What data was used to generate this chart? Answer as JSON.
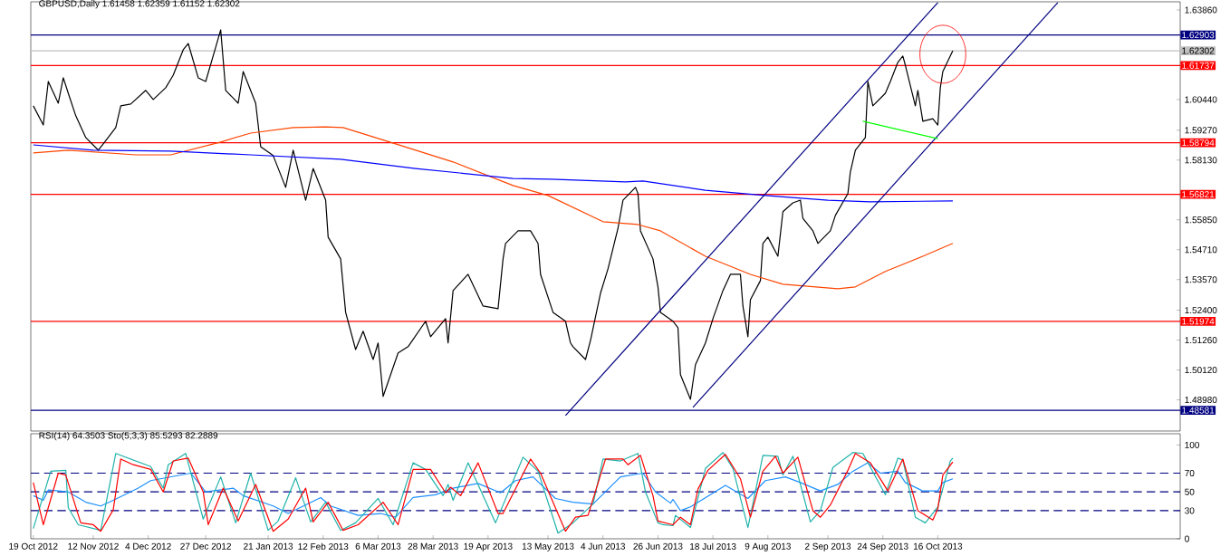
{
  "chart_data": [
    {
      "type": "line",
      "title": "GBPUSD,Daily 1.61458 1.62359 1.61152 1.62302",
      "xlim": [
        "2012-10-18",
        "2014-01-21"
      ],
      "ylim": [
        1.4779,
        1.6417
      ],
      "tick_labels": "y",
      "yticks": [
        {
          "value": 1.6386,
          "label": "1.63860"
        },
        {
          "value": 1.6044,
          "label": "1.60440"
        },
        {
          "value": 1.5927,
          "label": "1.59270"
        },
        {
          "value": 1.5813,
          "label": "1.58130"
        },
        {
          "value": 1.5585,
          "label": "1.55850"
        },
        {
          "value": 1.5471,
          "label": "1.54710"
        },
        {
          "value": 1.5357,
          "label": "1.53570"
        },
        {
          "value": 1.524,
          "label": "1.52400"
        },
        {
          "value": 1.5126,
          "label": "1.51260"
        },
        {
          "value": 1.5012,
          "label": "1.50120"
        },
        {
          "value": 1.4898,
          "label": "1.48980"
        }
      ],
      "series": [
        {
          "color": "#000000",
          "x": [
            "2012-10-19",
            "2012-10-23",
            "2012-10-25",
            "2012-10-29",
            "2012-10-31",
            "2012-11-02",
            "2012-11-05",
            "2012-11-09",
            "2012-11-14",
            "2012-11-16",
            "2012-11-21",
            "2012-11-23",
            "2012-11-27",
            "2012-12-03",
            "2012-12-06",
            "2012-12-11",
            "2012-12-14",
            "2012-12-18",
            "2012-12-20",
            "2012-12-24",
            "2012-12-27",
            "2012-12-31",
            "2013-01-02",
            "2013-01-04",
            "2013-01-09",
            "2013-01-11",
            "2013-01-16",
            "2013-01-18",
            "2013-01-23",
            "2013-01-28",
            "2013-01-31",
            "2013-02-05",
            "2013-02-08",
            "2013-02-13",
            "2013-02-14",
            "2013-02-19",
            "2013-02-21",
            "2013-02-25",
            "2013-02-28",
            "2013-03-04",
            "2013-03-06",
            "2013-03-08",
            "2013-03-14",
            "2013-03-18",
            "2013-03-25",
            "2013-03-27",
            "2013-04-02",
            "2013-04-03",
            "2013-04-05",
            "2013-04-11",
            "2013-04-17",
            "2013-04-23",
            "2013-04-25",
            "2013-04-26",
            "2013-05-01",
            "2013-05-06",
            "2013-05-09",
            "2013-05-10",
            "2013-05-15",
            "2013-05-20",
            "2013-05-22",
            "2013-05-23",
            "2013-05-28",
            "2013-05-30",
            "2013-06-03",
            "2013-06-06",
            "2013-06-10",
            "2013-06-12",
            "2013-06-17",
            "2013-06-18",
            "2013-06-19",
            "2013-06-24",
            "2013-06-26",
            "2013-06-27",
            "2013-07-02",
            "2013-07-04",
            "2013-07-05",
            "2013-07-09",
            "2013-07-11",
            "2013-07-15",
            "2013-07-18",
            "2013-07-22",
            "2013-07-25",
            "2013-07-29",
            "2013-07-30",
            "2013-08-01",
            "2013-08-02",
            "2013-08-06",
            "2013-08-07",
            "2013-08-09",
            "2013-08-13",
            "2013-08-15",
            "2013-08-19",
            "2013-08-22",
            "2013-08-23",
            "2013-08-27",
            "2013-08-29",
            "2013-09-03",
            "2013-09-05",
            "2013-09-10",
            "2013-09-11",
            "2013-09-13",
            "2013-09-17",
            "2013-09-18",
            "2013-09-20",
            "2013-09-25",
            "2013-09-27",
            "2013-09-30",
            "2013-10-02",
            "2013-10-03",
            "2013-10-07",
            "2013-10-08",
            "2013-10-10",
            "2013-10-14",
            "2013-10-16",
            "2013-10-17",
            "2013-10-18",
            "2013-10-22"
          ],
          "values": [
            1.602,
            1.5947,
            1.6113,
            1.603,
            1.6127,
            1.6068,
            1.5982,
            1.5899,
            1.5851,
            1.5875,
            1.5937,
            1.602,
            1.6027,
            1.6079,
            1.6044,
            1.6089,
            1.6137,
            1.6234,
            1.6258,
            1.6127,
            1.6113,
            1.6244,
            1.631,
            1.6079,
            1.603,
            1.6151,
            1.603,
            1.5864,
            1.583,
            1.5709,
            1.5851,
            1.566,
            1.5781,
            1.566,
            1.5519,
            1.5436,
            1.5232,
            1.509,
            1.516,
            1.5052,
            1.5115,
            1.4911,
            1.5077,
            1.5101,
            1.5198,
            1.5139,
            1.5208,
            1.5115,
            1.5315,
            1.5377,
            1.5256,
            1.5246,
            1.5436,
            1.5495,
            1.5543,
            1.5543,
            1.5495,
            1.5377,
            1.5232,
            1.5198,
            1.5115,
            1.5101,
            1.5052,
            1.5125,
            1.5305,
            1.5398,
            1.5553,
            1.566,
            1.5709,
            1.5685,
            1.5543,
            1.5436,
            1.5329,
            1.5232,
            1.5198,
            1.5173,
            1.4994,
            1.49,
            1.5032,
            1.5115,
            1.5208,
            1.5315,
            1.5377,
            1.5377,
            1.5256,
            1.5139,
            1.528,
            1.5353,
            1.5495,
            1.5519,
            1.5446,
            1.5616,
            1.565,
            1.566,
            1.5591,
            1.5543,
            1.5495,
            1.5543,
            1.5602,
            1.5685,
            1.5768,
            1.5851,
            1.5899,
            1.6113,
            1.602,
            1.6068,
            1.6113,
            1.6186,
            1.621,
            1.6175,
            1.602,
            1.6079,
            1.5961,
            1.5971,
            1.5947,
            1.6089,
            1.6151,
            1.623
          ]
        },
        {
          "color": "#ff4500",
          "x": [
            "2012-10-19",
            "2012-11-02",
            "2012-11-29",
            "2012-12-13",
            "2013-01-02",
            "2013-01-14",
            "2013-01-31",
            "2013-02-13",
            "2013-02-20",
            "2013-03-13",
            "2013-04-05",
            "2013-04-29",
            "2013-05-13",
            "2013-06-04",
            "2013-06-18",
            "2013-06-27",
            "2013-07-15",
            "2013-08-02",
            "2013-08-15",
            "2013-09-06",
            "2013-09-13",
            "2013-09-25",
            "2013-10-10",
            "2013-10-22"
          ],
          "values": [
            1.584,
            1.5851,
            1.5833,
            1.5833,
            1.5882,
            1.5916,
            1.5937,
            1.594,
            1.5937,
            1.5875,
            1.5806,
            1.5716,
            1.5678,
            1.5578,
            1.5567,
            1.5543,
            1.5446,
            1.5377,
            1.5339,
            1.5322,
            1.5329,
            1.5388,
            1.5446,
            1.5495
          ]
        },
        {
          "color": "#0000ff",
          "x": [
            "2012-10-19",
            "2012-11-12",
            "2012-12-13",
            "2013-01-14",
            "2013-02-19",
            "2013-03-21",
            "2013-04-29",
            "2013-05-14",
            "2013-06-13",
            "2013-06-20",
            "2013-07-15",
            "2013-08-08",
            "2013-09-02",
            "2013-09-19",
            "2013-10-22"
          ],
          "values": [
            1.5871,
            1.5851,
            1.5847,
            1.5833,
            1.5816,
            1.5781,
            1.5743,
            1.574,
            1.573,
            1.5733,
            1.5698,
            1.5678,
            1.566,
            1.5654,
            1.5657
          ]
        },
        {
          "color": "#000080",
          "x": [
            "2013-05-20",
            "2013-10-16"
          ],
          "values": [
            1.4838,
            1.6414
          ]
        },
        {
          "color": "#000080",
          "x": [
            "2013-07-10",
            "2013-12-03"
          ],
          "values": [
            1.4869,
            1.6414
          ]
        },
        {
          "color": "#00ff00",
          "x": [
            "2013-09-16",
            "2013-10-16"
          ],
          "values": [
            1.5961,
            1.5895
          ]
        }
      ],
      "ref_lines": [
        {
          "axis": "y",
          "value": 1.62903,
          "label": "1.62903",
          "color": "#000080"
        },
        {
          "axis": "y",
          "value": 1.62302,
          "label": "1.62302",
          "color": "#c0c0c0"
        },
        {
          "axis": "y",
          "value": 1.61737,
          "label": "1.61737",
          "color": "#ff0000"
        },
        {
          "axis": "y",
          "value": 1.58794,
          "label": "1.58794",
          "color": "#ff0000"
        },
        {
          "axis": "y",
          "value": 1.56821,
          "label": "1.56821",
          "color": "#ff0000"
        },
        {
          "axis": "y",
          "value": 1.51974,
          "label": "1.51974",
          "color": "#ff0000"
        },
        {
          "axis": "y",
          "value": 1.48581,
          "label": "1.48581",
          "color": "#000080"
        }
      ]
    },
    {
      "type": "line",
      "title": "RSI(14) 64.3503 Sto(5,3,3) 85.5293 82.2889",
      "xlim": [
        "2012-10-18",
        "2014-01-21"
      ],
      "ylim": [
        0,
        112
      ],
      "yticks": [
        0,
        30,
        50,
        70,
        100
      ],
      "xticks": [
        {
          "value": "2012-10-19",
          "label": "19 Oct 2012"
        },
        {
          "value": "2012-11-12",
          "label": "12 Nov 2012"
        },
        {
          "value": "2012-12-04",
          "label": "4 Dec 2012"
        },
        {
          "value": "2012-12-27",
          "label": "27 Dec 2012"
        },
        {
          "value": "2013-01-21",
          "label": "21 Jan 2013"
        },
        {
          "value": "2013-02-12",
          "label": "12 Feb 2013"
        },
        {
          "value": "2013-03-06",
          "label": "6 Mar 2013"
        },
        {
          "value": "2013-03-28",
          "label": "28 Mar 2013"
        },
        {
          "value": "2013-04-19",
          "label": "19 Apr 2013"
        },
        {
          "value": "2013-05-13",
          "label": "13 May 2013"
        },
        {
          "value": "2013-06-04",
          "label": "4 Jun 2013"
        },
        {
          "value": "2013-06-26",
          "label": "26 Jun 2013"
        },
        {
          "value": "2013-07-18",
          "label": "18 Jul 2013"
        },
        {
          "value": "2013-08-09",
          "label": "9 Aug 2013"
        },
        {
          "value": "2013-09-02",
          "label": "2 Sep 2013"
        },
        {
          "value": "2013-09-24",
          "label": "24 Sep 2013"
        },
        {
          "value": "2013-10-16",
          "label": "16 Oct 2013"
        }
      ],
      "series": [
        {
          "color": "#1e90ff",
          "x": [
            "2012-10-19",
            "2012-10-23",
            "2012-10-25",
            "2012-11-02",
            "2012-11-09",
            "2012-11-15",
            "2012-11-20",
            "2012-11-30",
            "2012-12-05",
            "2012-12-21",
            "2012-12-27",
            "2013-01-07",
            "2013-01-11",
            "2013-01-23",
            "2013-01-29",
            "2013-02-11",
            "2013-02-15",
            "2013-02-26",
            "2013-03-07",
            "2013-03-13",
            "2013-03-20",
            "2013-03-29",
            "2013-04-05",
            "2013-04-15",
            "2013-04-24",
            "2013-04-30",
            "2013-05-07",
            "2013-05-16",
            "2013-05-23",
            "2013-05-31",
            "2013-06-11",
            "2013-06-20",
            "2013-06-25",
            "2013-07-01",
            "2013-07-02",
            "2013-07-05",
            "2013-07-09",
            "2013-07-17",
            "2013-07-23",
            "2013-08-01",
            "2013-08-08",
            "2013-08-16",
            "2013-08-22",
            "2013-08-30",
            "2013-09-06",
            "2013-09-12",
            "2013-09-18",
            "2013-09-23",
            "2013-09-30",
            "2013-10-03",
            "2013-10-10",
            "2013-10-16",
            "2013-10-18",
            "2013-10-22"
          ],
          "values": [
            46,
            41,
            52,
            50,
            39,
            35,
            41,
            54,
            62,
            70,
            50,
            54,
            46,
            35,
            27,
            44,
            35,
            25,
            27,
            23,
            44,
            47,
            54,
            59,
            49,
            62,
            66,
            43,
            39,
            37,
            66,
            70,
            50,
            38,
            42,
            30,
            34,
            47,
            57,
            43,
            62,
            66,
            60,
            51,
            58,
            72,
            81,
            70,
            72,
            60,
            51,
            51,
            60,
            64
          ]
        },
        {
          "color": "#20b2aa",
          "x": [
            "2012-10-19",
            "2012-10-26",
            "2012-11-01",
            "2012-11-02",
            "2012-11-06",
            "2012-11-15",
            "2012-11-21",
            "2012-12-05",
            "2012-12-10",
            "2012-12-12",
            "2012-12-19",
            "2012-12-26",
            "2013-01-02",
            "2013-01-08",
            "2013-01-14",
            "2013-01-21",
            "2013-01-25",
            "2013-02-01",
            "2013-02-07",
            "2013-02-13",
            "2013-02-19",
            "2013-02-25",
            "2013-03-06",
            "2013-03-12",
            "2013-03-20",
            "2013-03-25",
            "2013-04-01",
            "2013-04-03",
            "2013-04-05",
            "2013-04-11",
            "2013-04-22",
            "2013-05-03",
            "2013-05-09",
            "2013-05-17",
            "2013-05-23",
            "2013-05-31",
            "2013-06-04",
            "2013-06-11",
            "2013-06-18",
            "2013-06-21",
            "2013-06-26",
            "2013-06-28",
            "2013-07-02",
            "2013-07-03",
            "2013-07-09",
            "2013-07-15",
            "2013-07-22",
            "2013-07-26",
            "2013-08-01",
            "2013-08-07",
            "2013-08-13",
            "2013-08-15",
            "2013-08-19",
            "2013-08-26",
            "2013-08-30",
            "2013-09-04",
            "2013-09-12",
            "2013-09-16",
            "2013-09-25",
            "2013-09-30",
            "2013-10-02",
            "2013-10-07",
            "2013-10-11",
            "2013-10-16",
            "2013-10-21",
            "2013-10-22"
          ],
          "values": [
            11,
            72,
            73,
            33,
            15,
            9,
            91,
            77,
            54,
            79,
            91,
            21,
            66,
            17,
            70,
            9,
            19,
            65,
            18,
            39,
            9,
            17,
            43,
            15,
            81,
            74,
            46,
            58,
            41,
            81,
            17,
            87,
            72,
            6,
            17,
            37,
            85,
            83,
            91,
            50,
            17,
            15,
            14,
            25,
            12,
            75,
            92,
            75,
            12,
            89,
            88,
            68,
            88,
            18,
            30,
            76,
            92,
            91,
            47,
            86,
            84,
            23,
            17,
            34,
            83,
            86
          ]
        },
        {
          "color": "#ff0000",
          "x": [
            "2012-10-19",
            "2012-10-23",
            "2012-10-29",
            "2012-11-01",
            "2012-11-07",
            "2012-11-12",
            "2012-11-15",
            "2012-11-20",
            "2012-11-23",
            "2012-11-28",
            "2012-12-05",
            "2012-12-10",
            "2012-12-14",
            "2012-12-20",
            "2012-12-26",
            "2012-12-28",
            "2013-01-03",
            "2013-01-09",
            "2013-01-16",
            "2013-01-23",
            "2013-01-29",
            "2013-02-05",
            "2013-02-08",
            "2013-02-14",
            "2013-02-20",
            "2013-02-26",
            "2013-03-08",
            "2013-03-14",
            "2013-03-20",
            "2013-03-27",
            "2013-04-02",
            "2013-04-04",
            "2013-04-08",
            "2013-04-15",
            "2013-04-23",
            "2013-04-25",
            "2013-05-06",
            "2013-05-10",
            "2013-05-20",
            "2013-05-24",
            "2013-05-29",
            "2013-06-05",
            "2013-06-12",
            "2013-06-14",
            "2013-06-19",
            "2013-06-24",
            "2013-06-26",
            "2013-07-02",
            "2013-07-05",
            "2013-07-09",
            "2013-07-12",
            "2013-07-16",
            "2013-07-23",
            "2013-07-29",
            "2013-08-02",
            "2013-08-07",
            "2013-08-12",
            "2013-08-15",
            "2013-08-21",
            "2013-08-27",
            "2013-08-30",
            "2013-09-03",
            "2013-09-10",
            "2013-09-13",
            "2013-09-19",
            "2013-09-26",
            "2013-10-02",
            "2013-10-08",
            "2013-10-14",
            "2013-10-16",
            "2013-10-18",
            "2013-10-22"
          ],
          "values": [
            60,
            15,
            70,
            68,
            17,
            15,
            8,
            31,
            85,
            79,
            74,
            50,
            83,
            86,
            50,
            15,
            54,
            19,
            58,
            8,
            21,
            54,
            18,
            39,
            9,
            15,
            39,
            15,
            74,
            74,
            49,
            55,
            46,
            81,
            27,
            27,
            85,
            70,
            8,
            23,
            25,
            85,
            85,
            79,
            89,
            46,
            19,
            15,
            23,
            15,
            53,
            73,
            90,
            64,
            23,
            72,
            88,
            70,
            87,
            30,
            23,
            36,
            73,
            91,
            81,
            51,
            85,
            30,
            20,
            32,
            68,
            82
          ]
        }
      ],
      "ref_lines": [
        {
          "axis": "y",
          "value": 70,
          "color": "#000080",
          "line_style": "dashed"
        },
        {
          "axis": "y",
          "value": 50,
          "color": "#000080",
          "line_style": "dashed"
        },
        {
          "axis": "y",
          "value": 30,
          "color": "#000080",
          "line_style": "dashed"
        }
      ]
    }
  ]
}
